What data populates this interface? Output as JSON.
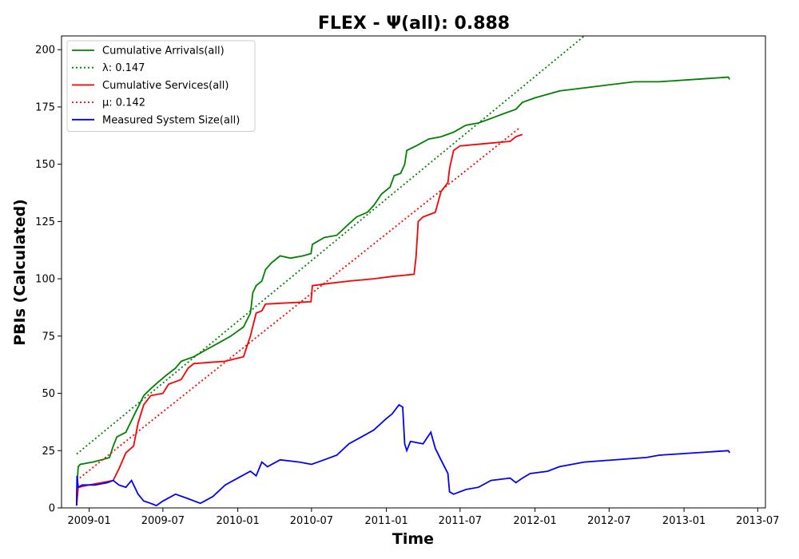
{
  "chart_data": {
    "type": "line",
    "title": "FLEX -  Ψ(all): 0.888",
    "xlabel": "Time",
    "ylabel": "PBIs (Calculated)",
    "xlim": [
      "2008-10-25",
      "2013-07-20"
    ],
    "ylim": [
      0,
      206
    ],
    "yticks": [
      0,
      25,
      50,
      75,
      100,
      125,
      150,
      175,
      200
    ],
    "xticks": [
      "2009-01",
      "2009-07",
      "2010-01",
      "2010-07",
      "2011-01",
      "2011-07",
      "2012-01",
      "2012-07",
      "2013-01",
      "2013-07"
    ],
    "grid": false,
    "legend_position": "top-left",
    "series": [
      {
        "name": "Cumulative Arrivals(all)",
        "color": "#008000",
        "style": "solid",
        "points": [
          [
            "2008-12-01",
            3
          ],
          [
            "2008-12-02",
            10
          ],
          [
            "2008-12-05",
            18
          ],
          [
            "2008-12-10",
            19
          ],
          [
            "2009-01-10",
            20
          ],
          [
            "2009-02-01",
            21
          ],
          [
            "2009-02-20",
            22
          ],
          [
            "2009-03-01",
            27
          ],
          [
            "2009-03-10",
            31
          ],
          [
            "2009-04-01",
            33
          ],
          [
            "2009-04-20",
            40
          ],
          [
            "2009-05-01",
            44
          ],
          [
            "2009-05-15",
            49
          ],
          [
            "2009-06-01",
            52
          ],
          [
            "2009-06-20",
            55
          ],
          [
            "2009-07-10",
            58
          ],
          [
            "2009-08-01",
            61
          ],
          [
            "2009-08-15",
            64
          ],
          [
            "2009-09-15",
            66
          ],
          [
            "2009-10-15",
            69
          ],
          [
            "2009-11-15",
            72
          ],
          [
            "2009-12-15",
            75
          ],
          [
            "2010-01-15",
            79
          ],
          [
            "2010-02-01",
            85
          ],
          [
            "2010-02-07",
            94
          ],
          [
            "2010-02-15",
            97
          ],
          [
            "2010-03-01",
            99
          ],
          [
            "2010-03-10",
            104
          ],
          [
            "2010-03-25",
            107
          ],
          [
            "2010-04-15",
            110
          ],
          [
            "2010-05-10",
            109
          ],
          [
            "2010-06-10",
            110
          ],
          [
            "2010-06-30",
            111
          ],
          [
            "2010-07-03",
            115
          ],
          [
            "2010-08-01",
            118
          ],
          [
            "2010-09-01",
            119
          ],
          [
            "2010-10-01",
            124
          ],
          [
            "2010-10-20",
            127
          ],
          [
            "2010-11-15",
            129
          ],
          [
            "2010-12-01",
            132
          ],
          [
            "2010-12-20",
            137
          ],
          [
            "2011-01-10",
            140
          ],
          [
            "2011-01-20",
            145
          ],
          [
            "2011-02-05",
            146
          ],
          [
            "2011-02-15",
            150
          ],
          [
            "2011-02-20",
            156
          ],
          [
            "2011-03-15",
            158
          ],
          [
            "2011-04-15",
            161
          ],
          [
            "2011-05-15",
            162
          ],
          [
            "2011-06-15",
            164
          ],
          [
            "2011-07-15",
            167
          ],
          [
            "2011-08-15",
            168
          ],
          [
            "2011-09-15",
            170
          ],
          [
            "2011-10-15",
            172
          ],
          [
            "2011-11-15",
            174
          ],
          [
            "2011-12-01",
            177
          ],
          [
            "2012-01-01",
            179
          ],
          [
            "2012-03-01",
            182
          ],
          [
            "2012-06-01",
            184
          ],
          [
            "2012-09-01",
            186
          ],
          [
            "2012-11-01",
            186
          ],
          [
            "2013-04-20",
            188
          ],
          [
            "2013-04-23",
            187
          ]
        ]
      },
      {
        "name": "λ: 0.147",
        "color": "#008000",
        "style": "dotted",
        "points": [
          [
            "2008-12-01",
            23.5
          ],
          [
            "2012-05-01",
            206
          ]
        ]
      },
      {
        "name": "Cumulative Services(all)",
        "color": "#ff0000",
        "style": "solid",
        "points": [
          [
            "2008-12-01",
            1
          ],
          [
            "2008-12-05",
            9
          ],
          [
            "2009-01-01",
            10
          ],
          [
            "2009-02-01",
            11
          ],
          [
            "2009-03-01",
            12
          ],
          [
            "2009-03-15",
            17
          ],
          [
            "2009-04-01",
            24
          ],
          [
            "2009-04-20",
            27
          ],
          [
            "2009-05-01",
            37
          ],
          [
            "2009-05-15",
            45
          ],
          [
            "2009-06-01",
            49
          ],
          [
            "2009-07-01",
            50
          ],
          [
            "2009-07-15",
            54
          ],
          [
            "2009-08-15",
            56
          ],
          [
            "2009-09-01",
            61
          ],
          [
            "2009-09-15",
            63
          ],
          [
            "2009-12-01",
            64
          ],
          [
            "2010-01-15",
            66
          ],
          [
            "2010-02-01",
            75
          ],
          [
            "2010-02-15",
            85
          ],
          [
            "2010-03-01",
            86
          ],
          [
            "2010-03-10",
            89
          ],
          [
            "2010-06-30",
            90
          ],
          [
            "2010-07-03",
            97
          ],
          [
            "2010-08-15",
            98
          ],
          [
            "2010-10-01",
            99
          ],
          [
            "2010-12-01",
            100
          ],
          [
            "2011-01-15",
            101
          ],
          [
            "2011-03-10",
            102
          ],
          [
            "2011-03-15",
            110
          ],
          [
            "2011-03-20",
            125
          ],
          [
            "2011-04-01",
            127
          ],
          [
            "2011-05-01",
            129
          ],
          [
            "2011-05-15",
            138
          ],
          [
            "2011-06-01",
            142
          ],
          [
            "2011-06-05",
            148
          ],
          [
            "2011-06-15",
            156
          ],
          [
            "2011-07-01",
            158
          ],
          [
            "2011-09-01",
            159
          ],
          [
            "2011-11-01",
            160
          ],
          [
            "2011-11-15",
            162
          ],
          [
            "2011-12-01",
            163
          ]
        ]
      },
      {
        "name": "μ: 0.142",
        "color": "#ff0000",
        "style": "dotted",
        "points": [
          [
            "2008-12-01",
            12
          ],
          [
            "2011-11-25",
            166
          ]
        ]
      },
      {
        "name": "Measured System Size(all)",
        "color": "#0000ff",
        "style": "solid",
        "points": [
          [
            "2008-12-01",
            1
          ],
          [
            "2008-12-02",
            14
          ],
          [
            "2008-12-05",
            9
          ],
          [
            "2008-12-15",
            10
          ],
          [
            "2009-01-15",
            10
          ],
          [
            "2009-02-15",
            11
          ],
          [
            "2009-03-01",
            12
          ],
          [
            "2009-03-15",
            10
          ],
          [
            "2009-04-01",
            9
          ],
          [
            "2009-04-15",
            12
          ],
          [
            "2009-05-01",
            6
          ],
          [
            "2009-05-15",
            3
          ],
          [
            "2009-06-01",
            2
          ],
          [
            "2009-06-15",
            1
          ],
          [
            "2009-07-01",
            3
          ],
          [
            "2009-08-01",
            6
          ],
          [
            "2009-09-01",
            4
          ],
          [
            "2009-10-01",
            2
          ],
          [
            "2009-11-01",
            5
          ],
          [
            "2009-12-01",
            10
          ],
          [
            "2010-01-01",
            13
          ],
          [
            "2010-02-01",
            16
          ],
          [
            "2010-02-15",
            14
          ],
          [
            "2010-03-01",
            20
          ],
          [
            "2010-03-15",
            18
          ],
          [
            "2010-04-15",
            21
          ],
          [
            "2010-06-01",
            20
          ],
          [
            "2010-07-01",
            19
          ],
          [
            "2010-08-01",
            21
          ],
          [
            "2010-09-01",
            23
          ],
          [
            "2010-10-01",
            28
          ],
          [
            "2010-11-01",
            31
          ],
          [
            "2010-12-01",
            34
          ],
          [
            "2011-01-01",
            39
          ],
          [
            "2011-01-15",
            41
          ],
          [
            "2011-02-01",
            45
          ],
          [
            "2011-02-10",
            44
          ],
          [
            "2011-02-15",
            28
          ],
          [
            "2011-02-20",
            25
          ],
          [
            "2011-03-01",
            29
          ],
          [
            "2011-04-01",
            28
          ],
          [
            "2011-04-20",
            33
          ],
          [
            "2011-05-01",
            26
          ],
          [
            "2011-05-15",
            21
          ],
          [
            "2011-06-01",
            15
          ],
          [
            "2011-06-05",
            7
          ],
          [
            "2011-06-15",
            6
          ],
          [
            "2011-07-15",
            8
          ],
          [
            "2011-08-15",
            9
          ],
          [
            "2011-09-15",
            12
          ],
          [
            "2011-11-01",
            13
          ],
          [
            "2011-11-15",
            11
          ],
          [
            "2011-12-01",
            13
          ],
          [
            "2011-12-20",
            15
          ],
          [
            "2012-02-01",
            16
          ],
          [
            "2012-03-01",
            18
          ],
          [
            "2012-05-01",
            20
          ],
          [
            "2012-10-01",
            22
          ],
          [
            "2012-11-01",
            23
          ],
          [
            "2013-04-20",
            25
          ],
          [
            "2013-04-23",
            24
          ]
        ]
      }
    ]
  }
}
